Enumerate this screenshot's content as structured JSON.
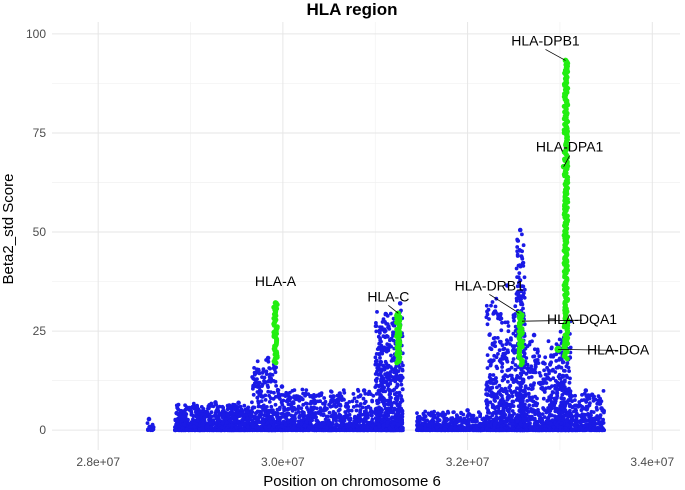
{
  "chart_data": {
    "type": "scatter",
    "title": "HLA region",
    "xlabel": "Position on chromosome 6",
    "ylabel": "Beta2_std Score",
    "xlim": [
      27500000,
      34300000
    ],
    "ylim": [
      -5,
      103
    ],
    "x_ticks": [
      28000000,
      30000000,
      32000000,
      34000000
    ],
    "x_tick_labels": [
      "2.8e+07",
      "3.0e+07",
      "3.2e+07",
      "3.4e+07"
    ],
    "y_ticks": [
      0,
      25,
      50,
      75,
      100
    ],
    "y_tick_labels": [
      "0",
      "25",
      "50",
      "75",
      "100"
    ],
    "grid": true,
    "colors": {
      "background_snps": "#1a1ae6",
      "gene_snps": "#22ee11"
    },
    "series": [
      {
        "points": [
          {
            "x": 28550000,
            "y": 2.8
          },
          {
            "x": 28850000,
            "y": 4.3
          },
          {
            "x": 28990000,
            "y": 5.6
          },
          {
            "x": 29270000,
            "y": 7.0
          },
          {
            "x": 29520000,
            "y": 6.9
          },
          {
            "x": 29840000,
            "y": 18.2
          },
          {
            "x": 29990000,
            "y": 11.0
          },
          {
            "x": 30200000,
            "y": 8.0
          },
          {
            "x": 30400000,
            "y": 9.0
          },
          {
            "x": 30630000,
            "y": 8.5
          },
          {
            "x": 30880000,
            "y": 10.0
          },
          {
            "x": 31060000,
            "y": 17.2
          },
          {
            "x": 31200000,
            "y": 26.5
          },
          {
            "x": 31270000,
            "y": 32.0
          },
          {
            "x": 31750000,
            "y": 3.0
          },
          {
            "x": 32000000,
            "y": 5.0
          },
          {
            "x": 32250000,
            "y": 12.0
          },
          {
            "x": 32430000,
            "y": 36.5
          },
          {
            "x": 32570000,
            "y": 50.5
          },
          {
            "x": 32720000,
            "y": 24.0
          },
          {
            "x": 32820000,
            "y": 17.0
          },
          {
            "x": 33060000,
            "y": 28.0
          },
          {
            "x": 33280000,
            "y": 10.0
          },
          {
            "x": 33450000,
            "y": 5.5
          }
        ]
      },
      {
        "points": [
          {
            "x": 29920000,
            "y": 32.1
          },
          {
            "x": 31250000,
            "y": 29.5
          },
          {
            "x": 32560000,
            "y": 29.5
          },
          {
            "x": 32590000,
            "y": 27.5
          },
          {
            "x": 33040000,
            "y": 66.5
          },
          {
            "x": 33060000,
            "y": 93.3
          },
          {
            "x": 32980000,
            "y": 20.4
          }
        ]
      }
    ],
    "annotations": [
      {
        "label": "HLA-A",
        "x": 29920000,
        "y": 32.1
      },
      {
        "label": "HLA-C",
        "x": 31250000,
        "y": 29.5
      },
      {
        "label": "HLA-DRB1",
        "x": 32560000,
        "y": 29.5
      },
      {
        "label": "HLA-DQA1",
        "x": 32590000,
        "y": 27.5
      },
      {
        "label": "HLA-DPB1",
        "x": 33060000,
        "y": 93.3
      },
      {
        "label": "HLA-DPA1",
        "x": 33040000,
        "y": 66.5
      },
      {
        "label": "HLA-DOA",
        "x": 32980000,
        "y": 20.4
      }
    ]
  }
}
